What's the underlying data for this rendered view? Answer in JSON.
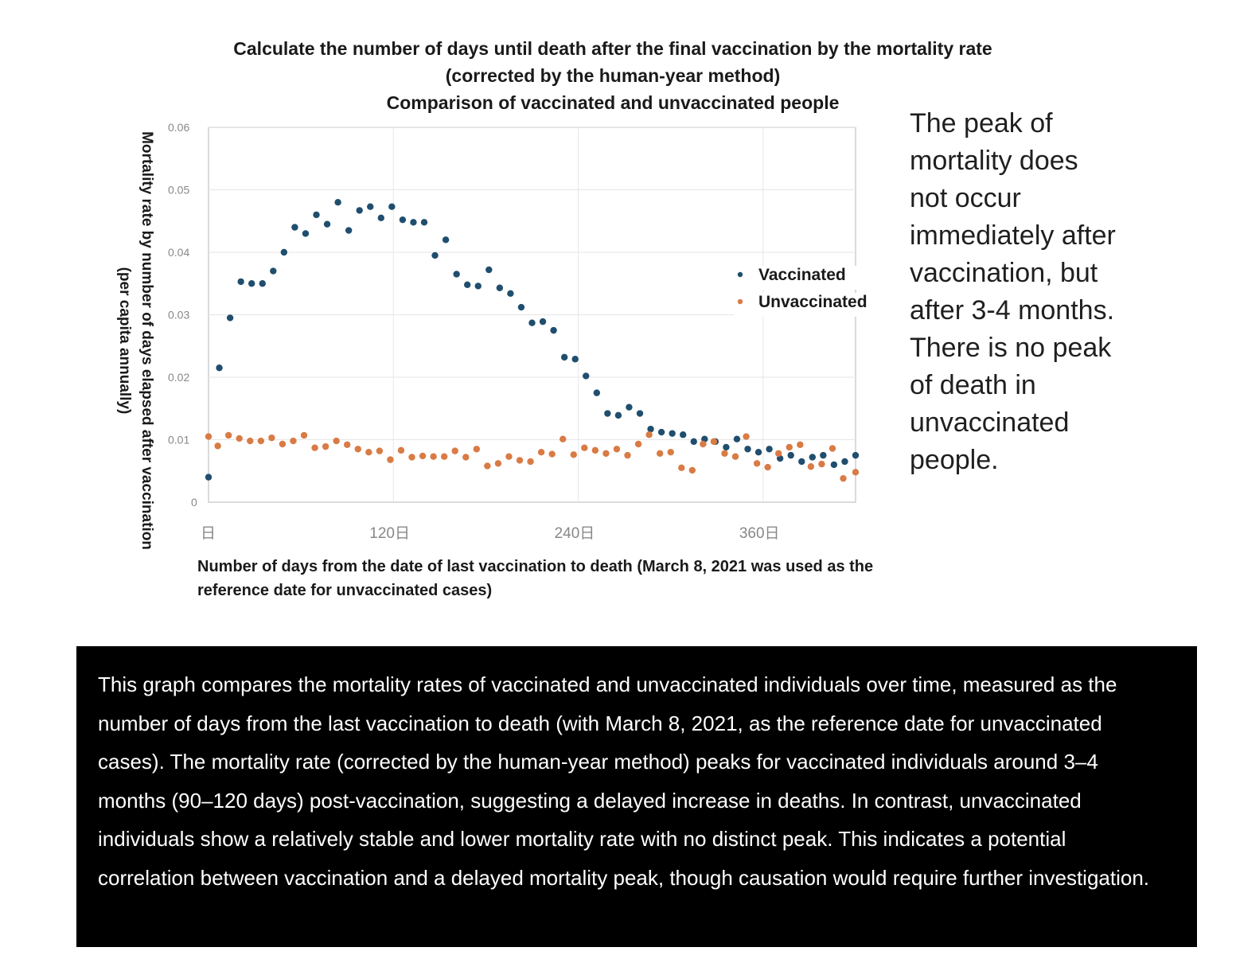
{
  "chart_data": {
    "type": "scatter",
    "title_lines": [
      "Calculate the number of days until death after the final vaccination by the mortality rate",
      "(corrected by the human-year method)",
      "Comparison of vaccinated and unvaccinated people"
    ],
    "ylabel_lines": [
      "Mortality rate by number of days elapsed after vaccination",
      "(per capita annually)"
    ],
    "xlabel": "Number of days from the date of last vaccination to death (March 8, 2021 was used as the reference date for unvaccinated cases)",
    "xlim": [
      0,
      420
    ],
    "ylim": [
      0,
      0.06
    ],
    "y_ticks": [
      "0",
      "0.01",
      "0.02",
      "0.03",
      "0.04",
      "0.05",
      "0.06"
    ],
    "x_ticks": [
      {
        "value": 0,
        "label": "日"
      },
      {
        "value": 120,
        "label": "120日"
      },
      {
        "value": 240,
        "label": "240日"
      },
      {
        "value": 360,
        "label": "360日"
      }
    ],
    "grid": true,
    "legend_position": "right",
    "series": [
      {
        "name": "Vaccinated",
        "color": "#1f4e6e",
        "x": [
          0,
          7,
          14,
          21,
          28,
          35,
          42,
          49,
          56,
          63,
          70,
          77,
          84,
          91,
          98,
          105,
          112,
          119,
          126,
          133,
          140,
          147,
          154,
          161,
          168,
          175,
          182,
          189,
          196,
          203,
          210,
          217,
          224,
          231,
          238,
          245,
          252,
          259,
          266,
          273,
          280,
          287,
          294,
          301,
          308,
          315,
          322,
          329,
          336,
          343,
          350,
          357,
          364,
          371,
          378,
          385,
          392,
          399,
          406,
          413,
          420
        ],
        "y": [
          0.004,
          0.0215,
          0.0295,
          0.0353,
          0.035,
          0.035,
          0.037,
          0.04,
          0.044,
          0.043,
          0.046,
          0.0445,
          0.048,
          0.0435,
          0.0467,
          0.0473,
          0.0455,
          0.0473,
          0.0452,
          0.0448,
          0.0448,
          0.0395,
          0.042,
          0.0365,
          0.0348,
          0.0346,
          0.0372,
          0.0343,
          0.0334,
          0.0312,
          0.0287,
          0.0289,
          0.0275,
          0.0232,
          0.0229,
          0.0202,
          0.0175,
          0.0142,
          0.0139,
          0.0152,
          0.0142,
          0.0117,
          0.0112,
          0.011,
          0.0108,
          0.0097,
          0.0101,
          0.0097,
          0.0088,
          0.0101,
          0.0085,
          0.008,
          0.0085,
          0.007,
          0.0075,
          0.0065,
          0.0072,
          0.0075,
          0.006,
          0.0065,
          0.0075
        ]
      },
      {
        "name": "Unvaccinated",
        "color": "#d97b45",
        "x": [
          0,
          6,
          13,
          20,
          27,
          34,
          41,
          48,
          55,
          62,
          69,
          76,
          83,
          90,
          97,
          104,
          111,
          118,
          125,
          132,
          139,
          146,
          153,
          160,
          167,
          174,
          181,
          188,
          195,
          202,
          209,
          216,
          223,
          230,
          237,
          244,
          251,
          258,
          265,
          272,
          279,
          286,
          293,
          300,
          307,
          314,
          321,
          328,
          335,
          342,
          349,
          356,
          363,
          370,
          377,
          384,
          391,
          398,
          405,
          412,
          420
        ],
        "y": [
          0.0105,
          0.009,
          0.0107,
          0.0102,
          0.0098,
          0.0098,
          0.0103,
          0.0093,
          0.0098,
          0.0107,
          0.0087,
          0.0089,
          0.0098,
          0.0092,
          0.0085,
          0.008,
          0.0082,
          0.0068,
          0.0083,
          0.0072,
          0.0074,
          0.0073,
          0.0073,
          0.0082,
          0.0072,
          0.0085,
          0.0058,
          0.0062,
          0.0073,
          0.0067,
          0.0065,
          0.008,
          0.0077,
          0.0101,
          0.0076,
          0.0087,
          0.0083,
          0.0078,
          0.0085,
          0.0075,
          0.0093,
          0.0108,
          0.0078,
          0.008,
          0.0055,
          0.0051,
          0.0093,
          0.0097,
          0.0078,
          0.0073,
          0.0105,
          0.0062,
          0.0056,
          0.0078,
          0.0088,
          0.0092,
          0.0057,
          0.0061,
          0.0086,
          0.0038,
          0.0048
        ]
      }
    ]
  },
  "annotation_lines": [
    "The peak of",
    "mortality does",
    "not occur",
    "immediately after",
    "vaccination, but",
    "after 3-4 months.",
    "There is no peak",
    "of death in",
    "unvaccinated",
    "people."
  ],
  "caption": "This graph compares the mortality rates of vaccinated and unvaccinated individuals over time, measured as the number of days from the last vaccination to death (with March 8, 2021, as the reference date for unvaccinated cases). The mortality rate (corrected by the human-year method) peaks for vaccinated individuals around 3–4 months (90–120 days) post-vaccination, suggesting a delayed increase in deaths. In contrast, unvaccinated individuals show a relatively stable and lower mortality rate with no distinct peak. This indicates a potential correlation between vaccination and a delayed mortality peak, though causation would require further investigation."
}
